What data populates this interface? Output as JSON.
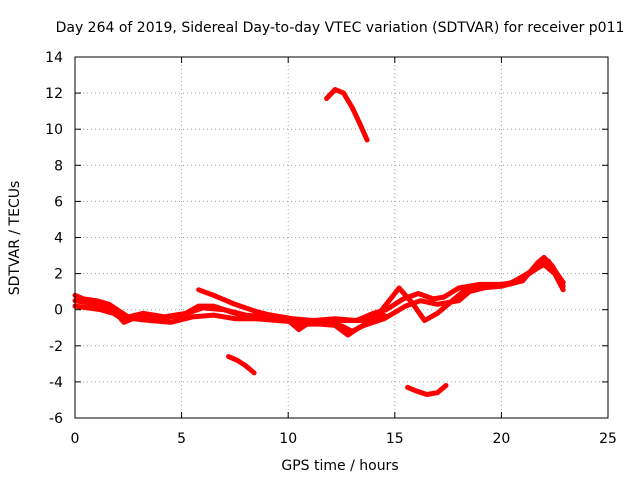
{
  "chart_data": {
    "type": "scatter",
    "title": "Day 264 of 2019, Sidereal Day-to-day VTEC variation (SDTVAR) for receiver p011",
    "xlabel": "GPS time / hours",
    "ylabel": "SDTVAR / TECUs",
    "xlim": [
      0,
      25
    ],
    "ylim": [
      -6,
      14
    ],
    "x_ticks": [
      0,
      5,
      10,
      15,
      20,
      25
    ],
    "y_ticks": [
      -6,
      -4,
      -2,
      0,
      2,
      4,
      6,
      8,
      10,
      12,
      14
    ],
    "grid": true,
    "color": "#ff0000",
    "series": [
      {
        "name": "main-trace-1",
        "points": [
          [
            0,
            0.5
          ],
          [
            0.5,
            0.4
          ],
          [
            1,
            0.3
          ],
          [
            1.5,
            0.1
          ],
          [
            2,
            -0.3
          ],
          [
            2.3,
            -0.7
          ],
          [
            2.7,
            -0.5
          ],
          [
            3.5,
            -0.6
          ],
          [
            4.5,
            -0.7
          ],
          [
            5.5,
            -0.4
          ],
          [
            6.5,
            -0.3
          ],
          [
            7.5,
            -0.5
          ],
          [
            8.5,
            -0.5
          ],
          [
            9.5,
            -0.6
          ],
          [
            10.5,
            -0.7
          ],
          [
            11.5,
            -0.8
          ],
          [
            12.5,
            -0.9
          ],
          [
            13,
            -1.2
          ],
          [
            13.5,
            -0.9
          ],
          [
            14.5,
            -0.5
          ],
          [
            15.5,
            0.2
          ],
          [
            16.2,
            0.5
          ],
          [
            17,
            0.3
          ],
          [
            18,
            0.5
          ],
          [
            18.5,
            1
          ],
          [
            19.5,
            1.3
          ],
          [
            20.5,
            1.5
          ],
          [
            21.5,
            2.2
          ],
          [
            22,
            2.5
          ],
          [
            22.5,
            2
          ],
          [
            22.9,
            1.1
          ]
        ]
      },
      {
        "name": "main-trace-2",
        "points": [
          [
            0,
            0.2
          ],
          [
            0.6,
            0.1
          ],
          [
            1.2,
            0
          ],
          [
            1.8,
            -0.2
          ],
          [
            2.2,
            -0.5
          ],
          [
            3,
            -0.4
          ],
          [
            4,
            -0.5
          ],
          [
            5,
            -0.3
          ],
          [
            6,
            0.1
          ],
          [
            7,
            0
          ],
          [
            8,
            -0.3
          ],
          [
            9,
            -0.4
          ],
          [
            10,
            -0.6
          ],
          [
            10.5,
            -1.1
          ],
          [
            11,
            -0.7
          ],
          [
            12,
            -0.7
          ],
          [
            12.8,
            -1.4
          ],
          [
            13.3,
            -1
          ],
          [
            14,
            -0.6
          ],
          [
            14.8,
            0.6
          ],
          [
            15.2,
            1.2
          ],
          [
            15.8,
            0.4
          ],
          [
            16.4,
            -0.6
          ],
          [
            17,
            -0.2
          ],
          [
            17.5,
            0.3
          ],
          [
            18.2,
            1
          ],
          [
            19,
            1.2
          ],
          [
            20,
            1.3
          ],
          [
            21,
            1.6
          ],
          [
            21.7,
            2.6
          ],
          [
            22,
            2.9
          ],
          [
            22.4,
            2.4
          ],
          [
            22.9,
            1.3
          ]
        ]
      },
      {
        "name": "main-trace-3",
        "points": [
          [
            0,
            0.8
          ],
          [
            0.4,
            0.6
          ],
          [
            1,
            0.5
          ],
          [
            1.6,
            0.3
          ],
          [
            2.1,
            -0.1
          ],
          [
            2.5,
            -0.4
          ],
          [
            3.2,
            -0.2
          ],
          [
            4.2,
            -0.4
          ],
          [
            5.2,
            -0.2
          ],
          [
            5.8,
            0.2
          ],
          [
            6.5,
            0.2
          ],
          [
            7.5,
            -0.2
          ],
          [
            8.2,
            -0.4
          ],
          [
            9.2,
            -0.3
          ],
          [
            10.2,
            -0.5
          ],
          [
            11.2,
            -0.6
          ],
          [
            12.2,
            -0.5
          ],
          [
            13.2,
            -0.6
          ],
          [
            14,
            -0.2
          ],
          [
            14.6,
            0
          ],
          [
            15.4,
            0.6
          ],
          [
            16.1,
            0.9
          ],
          [
            16.8,
            0.6
          ],
          [
            17.3,
            0.7
          ],
          [
            18,
            1.2
          ],
          [
            19,
            1.4
          ],
          [
            20.3,
            1.4
          ],
          [
            21.3,
            2
          ],
          [
            22.2,
            2.7
          ],
          [
            22.9,
            1.5
          ]
        ]
      },
      {
        "name": "diagonal-trace",
        "points": [
          [
            5.8,
            1.1
          ],
          [
            6.5,
            0.8
          ],
          [
            7.5,
            0.3
          ],
          [
            8.5,
            -0.1
          ],
          [
            9.5,
            -0.4
          ],
          [
            10.5,
            -0.8
          ],
          [
            11.5,
            -0.8
          ],
          [
            12.5,
            -0.6
          ],
          [
            13.5,
            -0.6
          ],
          [
            14.5,
            -0.3
          ]
        ]
      },
      {
        "name": "upper-arc",
        "points": [
          [
            11.8,
            11.7
          ],
          [
            12.2,
            12.2
          ],
          [
            12.6,
            12.0
          ],
          [
            13,
            11.2
          ],
          [
            13.4,
            10.2
          ],
          [
            13.7,
            9.4
          ]
        ]
      },
      {
        "name": "lower-left-segment",
        "points": [
          [
            7.2,
            -2.6
          ],
          [
            7.6,
            -2.8
          ],
          [
            8,
            -3.1
          ],
          [
            8.4,
            -3.5
          ]
        ]
      },
      {
        "name": "lower-right-arc",
        "points": [
          [
            15.6,
            -4.3
          ],
          [
            16,
            -4.5
          ],
          [
            16.5,
            -4.7
          ],
          [
            17,
            -4.6
          ],
          [
            17.4,
            -4.2
          ]
        ]
      }
    ]
  }
}
